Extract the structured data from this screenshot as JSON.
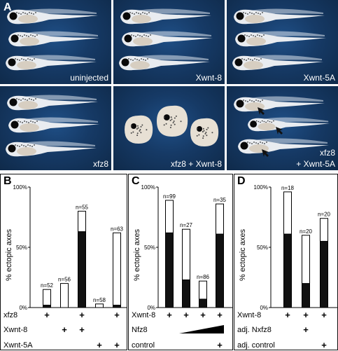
{
  "figure": {
    "panel_letters": {
      "A": "A",
      "B": "B",
      "C": "C",
      "D": "D"
    },
    "panel_a": {
      "tiles": [
        {
          "label": "uninjected",
          "phenotype": "normal"
        },
        {
          "label": "Xwnt-8",
          "phenotype": "normal"
        },
        {
          "label": "Xwnt-5A",
          "phenotype": "normal"
        },
        {
          "label": "xfz8",
          "phenotype": "normal"
        },
        {
          "label": "xfz8 + Xwnt-8",
          "phenotype": "dorsalized"
        },
        {
          "label_line1": "xfz8",
          "label_line2": "+ Xwnt-5A",
          "phenotype": "secondary-axis",
          "arrows": "arrow-icon"
        }
      ],
      "colors": {
        "background": "#163a66",
        "embryo": "#e9ecf0",
        "eye": "#0a0a0a"
      }
    },
    "y_axis_title": "% ectopic axes",
    "y_ticks": [
      "0%",
      "50%",
      "100%"
    ]
  },
  "chart_data": [
    {
      "panel": "B",
      "type": "bar",
      "stacked": true,
      "ylabel": "% ectopic axes",
      "ylim": [
        0,
        100
      ],
      "bars": [
        {
          "n": "n=52",
          "total": 15,
          "black": 2
        },
        {
          "n": "n=56",
          "total": 20,
          "black": 0
        },
        {
          "n": "n=55",
          "total": 80,
          "black": 63
        },
        {
          "n": "n=58",
          "total": 3,
          "black": 0
        },
        {
          "n": "n=63",
          "total": 62,
          "black": 2
        }
      ],
      "rows": [
        {
          "label": "xfz8",
          "marks": [
            "+",
            "",
            "+",
            "",
            "+"
          ]
        },
        {
          "label": "Xwnt-8",
          "marks": [
            "",
            "+",
            "+",
            "",
            ""
          ]
        },
        {
          "label": "Xwnt-5A",
          "marks": [
            "",
            "",
            "",
            "+",
            "+"
          ]
        }
      ]
    },
    {
      "panel": "C",
      "type": "bar",
      "stacked": true,
      "ylabel": "% ectopic axes",
      "ylim": [
        0,
        100
      ],
      "bars": [
        {
          "n": "n=99",
          "total": 89,
          "black": 62
        },
        {
          "n": "n=27",
          "total": 65,
          "black": 23
        },
        {
          "n": "n=86",
          "total": 22,
          "black": 7
        },
        {
          "n": "n=35",
          "total": 86,
          "black": 61
        }
      ],
      "rows": [
        {
          "label": "Xwnt-8",
          "marks": [
            "+",
            "+",
            "+",
            "+"
          ]
        },
        {
          "label": "Nfz8",
          "marks": [
            "",
            "wedge",
            "",
            ""
          ]
        },
        {
          "label": "control",
          "marks": [
            "",
            "",
            "",
            "+"
          ]
        }
      ]
    },
    {
      "panel": "D",
      "type": "bar",
      "stacked": true,
      "ylabel": "% ectopic axes",
      "ylim": [
        0,
        100
      ],
      "bars": [
        {
          "n": "n=18",
          "total": 96,
          "black": 61
        },
        {
          "n": "n=20",
          "total": 60,
          "black": 20
        },
        {
          "n": "n=20",
          "total": 74,
          "black": 55
        }
      ],
      "rows": [
        {
          "label": "Xwnt-8",
          "marks": [
            "+",
            "+",
            "+"
          ]
        },
        {
          "label": "adj. Nxfz8",
          "marks": [
            "",
            "+",
            ""
          ]
        },
        {
          "label": "adj. control",
          "marks": [
            "",
            "",
            "+"
          ]
        }
      ]
    }
  ]
}
